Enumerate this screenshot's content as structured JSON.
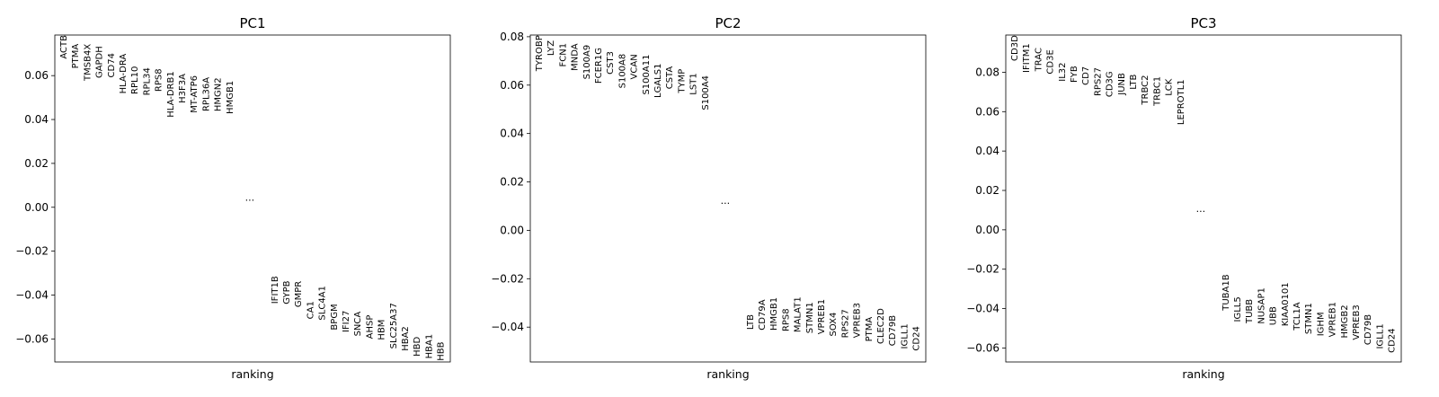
{
  "chart_data": [
    {
      "type": "scatter",
      "title": "PC1",
      "xlabel": "ranking",
      "ylabel": "",
      "ylim": [
        -0.0705,
        0.0785
      ],
      "yticks": [
        -0.06,
        -0.04,
        -0.02,
        0.0,
        0.02,
        0.04,
        0.06
      ],
      "ytick_labels": [
        "−0.06",
        "−0.04",
        "−0.02",
        "0.00",
        "0.02",
        "0.04",
        "0.06"
      ],
      "ellipsis": "...",
      "ellipsis_y": 0.003,
      "top_genes": {
        "names": [
          "ACTB",
          "PTMA",
          "TMSB4X",
          "GAPDH",
          "CD74",
          "HLA-DRA",
          "RPL10",
          "RPL34",
          "RPS8",
          "HLA-DRB1",
          "H3F3A",
          "MT-ATP6",
          "RPL36A",
          "HMGN2",
          "HMGB1"
        ],
        "values": [
          0.0785,
          0.0745,
          0.0745,
          0.0735,
          0.0703,
          0.07,
          0.0643,
          0.0637,
          0.0632,
          0.062,
          0.0609,
          0.0601,
          0.0593,
          0.0591,
          0.0577
        ]
      },
      "bottom_genes": {
        "names": [
          "IFIT1B",
          "GYPB",
          "GMPR",
          "CA1",
          "SLC4A1",
          "BPGM",
          "IFI27",
          "SNCA",
          "AHSP",
          "HBM",
          "SLC25A37",
          "HBA2",
          "HBD",
          "HBA1",
          "HBB"
        ],
        "values": [
          -0.044,
          -0.0442,
          -0.0456,
          -0.051,
          -0.0515,
          -0.056,
          -0.057,
          -0.0588,
          -0.06,
          -0.0605,
          -0.0645,
          -0.0655,
          -0.068,
          -0.069,
          -0.07
        ]
      }
    },
    {
      "type": "scatter",
      "title": "PC2",
      "xlabel": "ranking",
      "ylabel": "",
      "ylim": [
        -0.0544,
        0.0807
      ],
      "yticks": [
        -0.04,
        -0.02,
        0.0,
        0.02,
        0.04,
        0.06,
        0.08
      ],
      "ytick_labels": [
        "−0.04",
        "−0.02",
        "0.00",
        "0.02",
        "0.04",
        "0.06",
        "0.08"
      ],
      "ellipsis": "...",
      "ellipsis_y": 0.011,
      "top_genes": {
        "names": [
          "TYROBP",
          "LYZ",
          "FCN1",
          "MNDA",
          "S100A9",
          "FCER1G",
          "CST3",
          "S100A8",
          "VCAN",
          "S100A11",
          "LGALS1",
          "CSTA",
          "TYMP",
          "LST1",
          "S100A4"
        ],
        "values": [
          0.0806,
          0.0785,
          0.0774,
          0.0772,
          0.0767,
          0.0755,
          0.074,
          0.073,
          0.0728,
          0.0727,
          0.069,
          0.0678,
          0.0667,
          0.065,
          0.064
        ]
      },
      "bottom_genes": {
        "names": [
          "LTB",
          "CD79A",
          "HMGB1",
          "RPS8",
          "MALAT1",
          "STMN1",
          "VPREB1",
          "SOX4",
          "RPS27",
          "VPREB3",
          "PTMA",
          "CLEC2D",
          "CD79B",
          "IGLL1",
          "CD24"
        ],
        "values": [
          -0.0411,
          -0.0413,
          -0.0414,
          -0.0418,
          -0.0422,
          -0.0426,
          -0.043,
          -0.0438,
          -0.0445,
          -0.0445,
          -0.046,
          -0.047,
          -0.0478,
          -0.049,
          -0.0498
        ]
      }
    },
    {
      "type": "scatter",
      "title": "PC3",
      "xlabel": "ranking",
      "ylabel": "",
      "ylim": [
        -0.0671,
        0.0989
      ],
      "yticks": [
        -0.06,
        -0.04,
        -0.02,
        0.0,
        0.02,
        0.04,
        0.06,
        0.08
      ],
      "ytick_labels": [
        "−0.06",
        "−0.04",
        "−0.02",
        "0.00",
        "0.02",
        "0.04",
        "0.06",
        "0.08"
      ],
      "ellipsis": "...",
      "ellipsis_y": 0.009,
      "top_genes": {
        "names": [
          "CD3D",
          "IFITM1",
          "TRAC",
          "CD3E",
          "IL32",
          "FYB",
          "CD7",
          "RPS27",
          "CD3G",
          "JUNB",
          "LTB",
          "TRBC2",
          "TRBC1",
          "LCK",
          "LEPROTL1"
        ],
        "values": [
          0.0988,
          0.0947,
          0.0925,
          0.0915,
          0.085,
          0.0833,
          0.083,
          0.0825,
          0.0805,
          0.0797,
          0.079,
          0.0786,
          0.078,
          0.0767,
          0.0764
        ]
      },
      "bottom_genes": {
        "names": [
          "TUBA1B",
          "IGLL5",
          "TUBB",
          "NUSAP1",
          "UBB",
          "KIAA0101",
          "TCL1A",
          "STMN1",
          "IGHM",
          "VPREB1",
          "HMGB2",
          "VPREB3",
          "CD79B",
          "IGLL1",
          "CD24"
        ],
        "values": [
          -0.041,
          -0.0468,
          -0.0475,
          -0.0478,
          -0.0485,
          -0.049,
          -0.051,
          -0.053,
          -0.054,
          -0.0545,
          -0.055,
          -0.056,
          -0.0585,
          -0.0605,
          -0.0625
        ]
      }
    }
  ]
}
